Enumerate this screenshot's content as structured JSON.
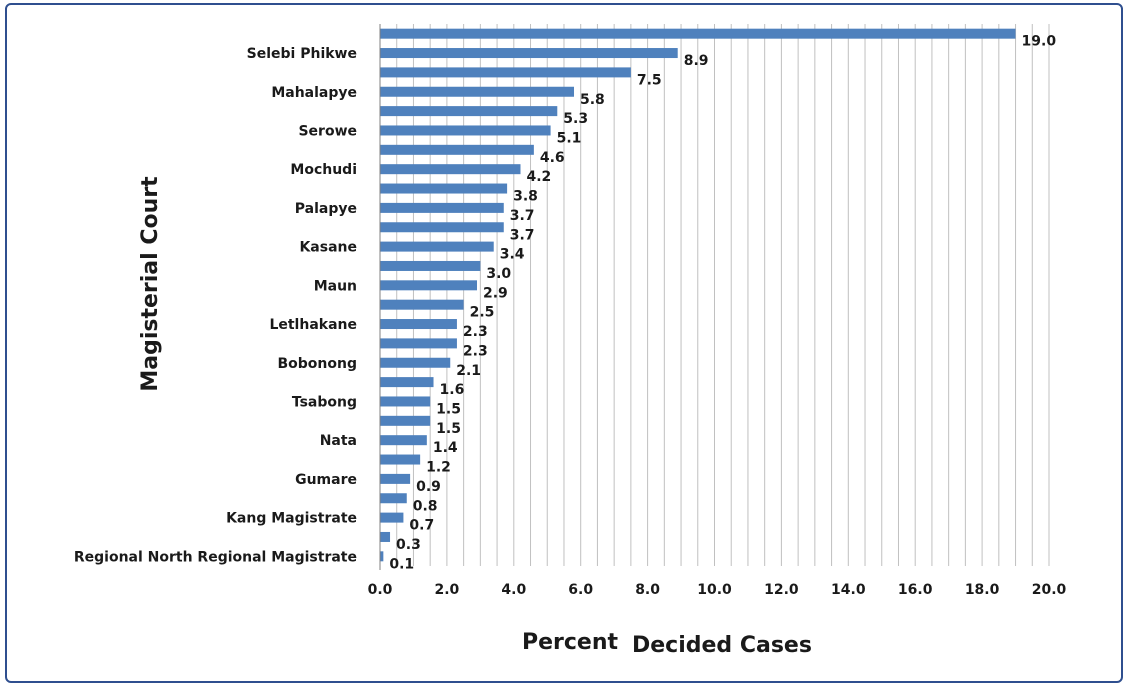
{
  "chart_data": {
    "type": "bar",
    "orientation": "horizontal",
    "ylabel": "Magisterial Court",
    "xlabel_part1": "Percent",
    "xlabel_part2": "Decided Cases",
    "xlim": [
      0,
      20
    ],
    "xticks": [
      "0.0",
      "2.0",
      "4.0",
      "6.0",
      "8.0",
      "10.0",
      "12.0",
      "14.0",
      "16.0",
      "18.0",
      "20.0"
    ],
    "grid": true,
    "bar_color": "#4f81bd",
    "categories": [
      "",
      "Selebi Phikwe",
      "",
      "Mahalapye",
      "",
      "Serowe",
      "",
      "Mochudi",
      "",
      "Palapye",
      "",
      "Kasane",
      "",
      "Maun",
      "",
      "Letlhakane",
      "",
      "Bobonong",
      "",
      "Tsabong",
      "",
      "Nata",
      "",
      "Gumare",
      "",
      "Kang Magistrate",
      "",
      "Regional North Regional Magistrate"
    ],
    "values": [
      19.0,
      8.9,
      7.5,
      5.8,
      5.3,
      5.1,
      4.6,
      4.2,
      3.8,
      3.7,
      3.7,
      3.4,
      3.0,
      2.9,
      2.5,
      2.3,
      2.3,
      2.1,
      1.6,
      1.5,
      1.5,
      1.4,
      1.2,
      0.9,
      0.8,
      0.7,
      0.3,
      0.1
    ],
    "value_labels": [
      "19.0",
      "8.9",
      "7.5",
      "5.8",
      "5.3",
      "5.1",
      "4.6",
      "4.2",
      "3.8",
      "3.7",
      "3.7",
      "3.4",
      "3.0",
      "2.9",
      "2.5",
      "2.3",
      "2.3",
      "2.1",
      "1.6",
      "1.5",
      "1.5",
      "1.4",
      "1.2",
      "0.9",
      "0.8",
      "0.7",
      "0.3",
      "0.1"
    ]
  }
}
